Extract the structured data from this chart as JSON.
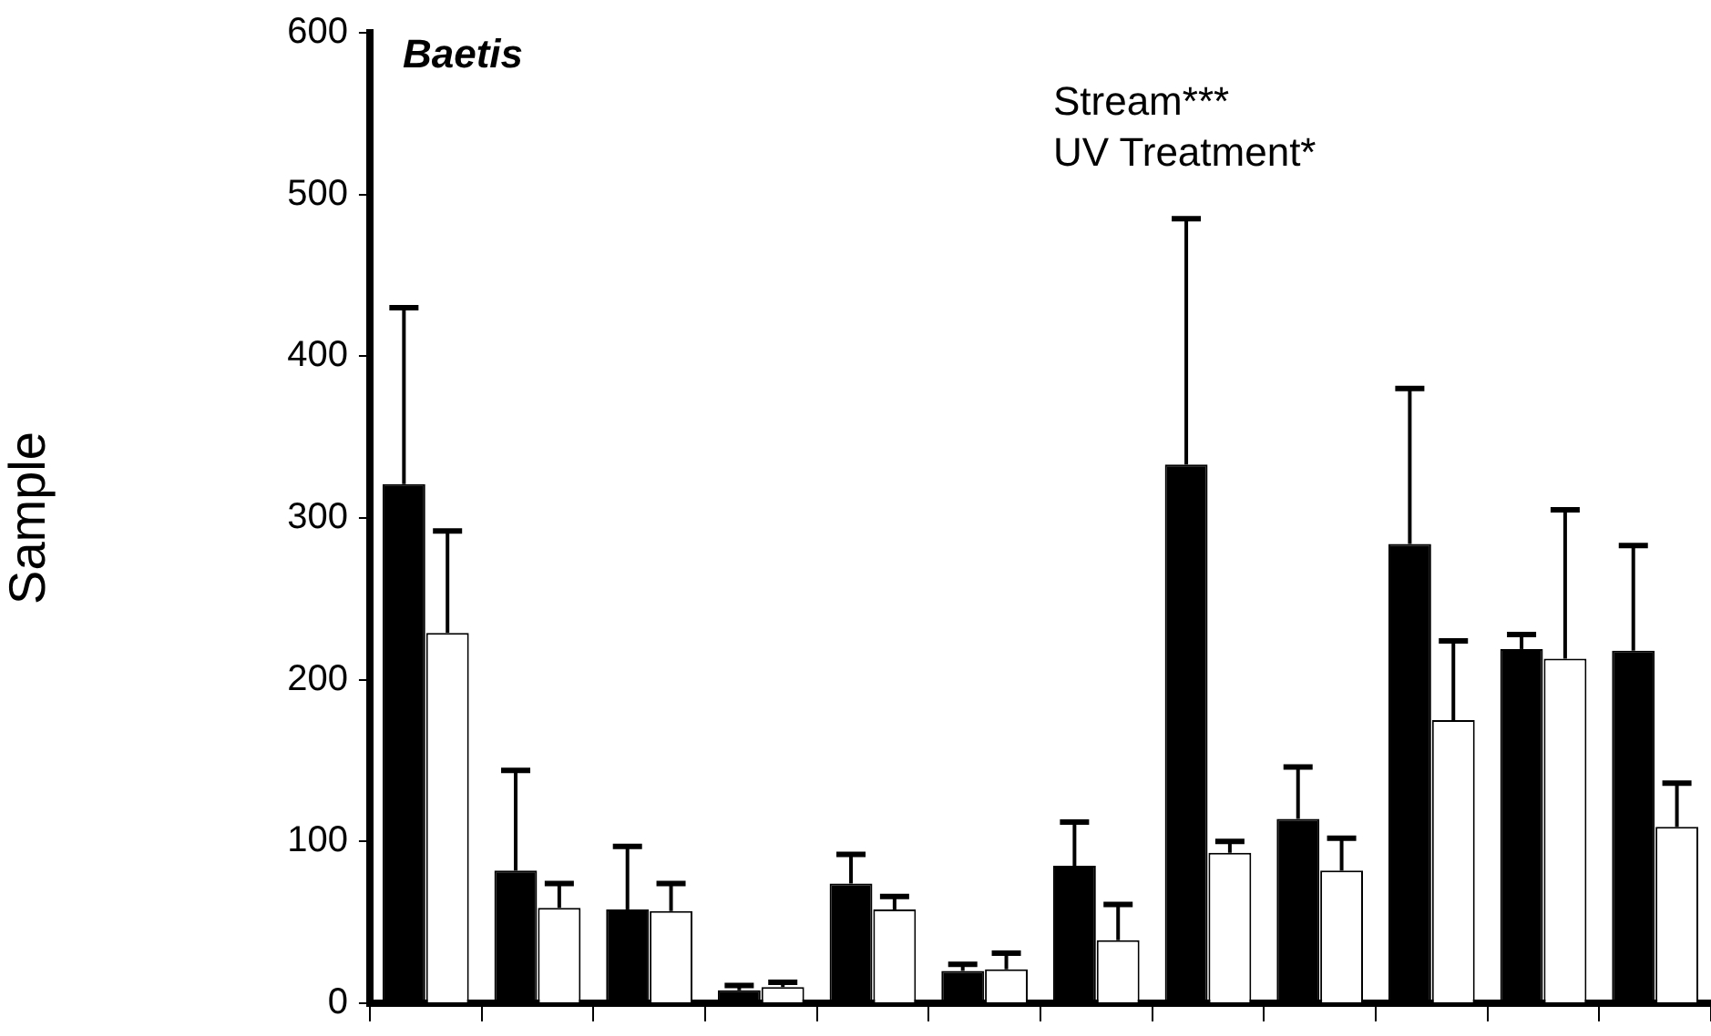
{
  "chart_data": {
    "type": "bar",
    "title": "Baetis",
    "ylabel": "Sample",
    "categories": [
      null,
      null,
      null,
      null,
      null,
      null,
      null,
      null,
      null,
      null,
      null,
      null
    ],
    "series": [
      {
        "color": "#000000",
        "values": [
          321,
          82,
          58,
          8,
          74,
          20,
          85,
          333,
          114,
          284,
          219,
          218
        ],
        "errors": [
          [
            321,
            430
          ],
          [
            82,
            144
          ],
          [
            58,
            97
          ],
          [
            8,
            11
          ],
          [
            74,
            92
          ],
          [
            20,
            24
          ],
          [
            85,
            112
          ],
          [
            333,
            485
          ],
          [
            114,
            146
          ],
          [
            284,
            380
          ],
          [
            219,
            228
          ],
          [
            218,
            283
          ]
        ]
      },
      {
        "color": "#ffffff",
        "values": [
          229,
          59,
          57,
          10,
          58,
          21,
          39,
          93,
          82,
          175,
          213,
          109
        ],
        "errors": [
          [
            229,
            292
          ],
          [
            59,
            74
          ],
          [
            57,
            74
          ],
          [
            10,
            13
          ],
          [
            58,
            66
          ],
          [
            21,
            31
          ],
          [
            39,
            61
          ],
          [
            93,
            100
          ],
          [
            82,
            102
          ],
          [
            175,
            224
          ],
          [
            213,
            305
          ],
          [
            109,
            136
          ]
        ]
      }
    ],
    "ylim": [
      0,
      600
    ],
    "yticks": [
      0,
      100,
      200,
      300,
      400,
      500,
      600
    ],
    "annotations": [
      "Stream***",
      "UV Treatment*"
    ],
    "grid": false,
    "legend": false
  }
}
